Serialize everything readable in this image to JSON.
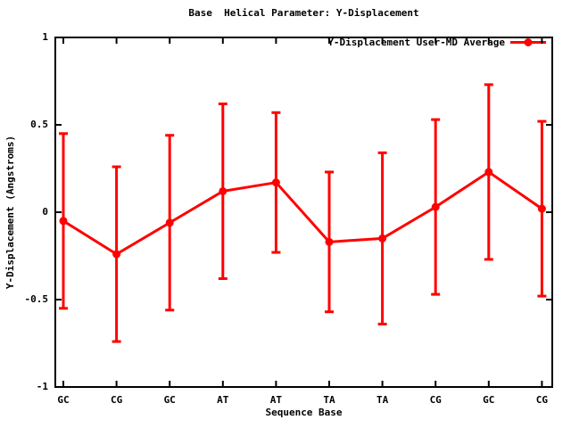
{
  "chart_data": {
    "type": "line",
    "title": "Base  Helical Parameter: Y-Displacement",
    "xlabel": "Sequence Base",
    "ylabel": "Y-Displacement (Angstroms)",
    "categories": [
      "GC",
      "CG",
      "GC",
      "AT",
      "AT",
      "TA",
      "TA",
      "CG",
      "GC",
      "CG"
    ],
    "series": [
      {
        "name": "Y-Displacement User-MD Average",
        "color": "#ff0000",
        "marker": "filled-circle",
        "values": [
          -0.05,
          -0.24,
          -0.06,
          0.12,
          0.17,
          -0.17,
          -0.15,
          0.03,
          0.23,
          0.02
        ],
        "err_high": [
          0.45,
          0.26,
          0.44,
          0.62,
          0.57,
          0.23,
          0.34,
          0.53,
          0.73,
          0.52
        ],
        "err_low": [
          -0.55,
          -0.74,
          -0.56,
          -0.38,
          -0.23,
          -0.57,
          -0.64,
          -0.47,
          -0.27,
          -0.48
        ]
      }
    ],
    "ylim": [
      -1,
      1
    ],
    "yticks": [
      1,
      0.5,
      0,
      -0.5,
      -1
    ],
    "ytick_labels": [
      "1",
      "0.5",
      "0",
      "-0.5",
      "-1"
    ],
    "grid": false,
    "legend_position": "top-right-inside",
    "axis_color": "#000000",
    "background": "#ffffff"
  }
}
